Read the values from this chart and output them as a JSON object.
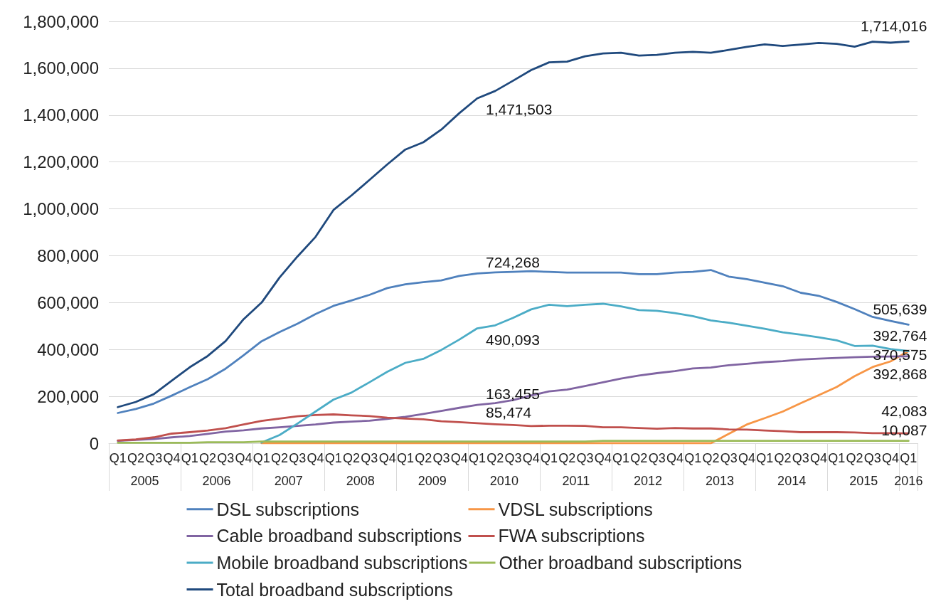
{
  "chart_data": {
    "type": "line",
    "categories": [
      "Q1",
      "Q2",
      "Q3",
      "Q4",
      "Q1",
      "Q2",
      "Q3",
      "Q4",
      "Q1",
      "Q2",
      "Q3",
      "Q4",
      "Q1",
      "Q2",
      "Q3",
      "Q4",
      "Q1",
      "Q2",
      "Q3",
      "Q4",
      "Q1",
      "Q2",
      "Q3",
      "Q4",
      "Q1",
      "Q2",
      "Q3",
      "Q4",
      "Q1",
      "Q2",
      "Q3",
      "Q4",
      "Q1",
      "Q2",
      "Q3",
      "Q4",
      "Q1",
      "Q2",
      "Q3",
      "Q4",
      "Q1",
      "Q2",
      "Q3",
      "Q4",
      "Q1"
    ],
    "series": [
      {
        "name": "DSL subscriptions",
        "color": "#4f81bd",
        "values": [
          129000,
          146000,
          169000,
          203000,
          239000,
          273000,
          318000,
          375000,
          435000,
          474000,
          510000,
          551000,
          586000,
          609000,
          633000,
          662000,
          678000,
          687000,
          695000,
          714000,
          724268,
          729000,
          731000,
          734000,
          731000,
          728000,
          728000,
          728000,
          728000,
          721000,
          721000,
          728000,
          731000,
          739000,
          711000,
          700000,
          685000,
          670000,
          642000,
          629000,
          603000,
          572000,
          539000,
          522000,
          505639
        ],
        "value_labels": [
          null,
          null,
          null,
          null,
          null,
          null,
          null,
          null,
          null,
          null,
          null,
          null,
          null,
          null,
          null,
          null,
          null,
          null,
          null,
          null,
          "724,268",
          null,
          null,
          null,
          null,
          null,
          null,
          null,
          null,
          null,
          null,
          null,
          null,
          null,
          null,
          null,
          null,
          null,
          null,
          null,
          null,
          null,
          null,
          null,
          "505,639"
        ]
      },
      {
        "name": "VDSL subscriptions",
        "color": "#f79646",
        "values": [
          null,
          null,
          null,
          null,
          null,
          null,
          null,
          null,
          0,
          0,
          0,
          0,
          0,
          0,
          0,
          0,
          0,
          0,
          0,
          0,
          0,
          0,
          0,
          0,
          0,
          0,
          0,
          0,
          0,
          0,
          0,
          0,
          0,
          0,
          40000,
          80000,
          107000,
          135000,
          171000,
          205000,
          240000,
          286000,
          325000,
          349000,
          392868
        ],
        "value_labels": [
          null,
          null,
          null,
          null,
          null,
          null,
          null,
          null,
          null,
          null,
          null,
          null,
          null,
          null,
          null,
          null,
          null,
          null,
          null,
          null,
          null,
          null,
          null,
          null,
          null,
          null,
          null,
          null,
          null,
          null,
          null,
          null,
          null,
          null,
          null,
          null,
          null,
          null,
          null,
          null,
          null,
          null,
          null,
          null,
          "392,868"
        ]
      },
      {
        "name": "Cable broadband subscriptions",
        "color": "#8064a2",
        "values": [
          10000,
          14000,
          18000,
          25000,
          31000,
          40000,
          50000,
          55000,
          63000,
          68000,
          74000,
          80000,
          88000,
          92000,
          96000,
          104000,
          113000,
          125000,
          138000,
          151000,
          163455,
          171000,
          184000,
          204000,
          221000,
          229000,
          244000,
          260000,
          276000,
          289000,
          299000,
          308000,
          319000,
          323000,
          333000,
          339000,
          346000,
          350000,
          357000,
          361000,
          364000,
          367000,
          369000,
          370000,
          370575
        ],
        "value_labels": [
          null,
          null,
          null,
          null,
          null,
          null,
          null,
          null,
          null,
          null,
          null,
          null,
          null,
          null,
          null,
          null,
          null,
          null,
          null,
          null,
          "163,455",
          null,
          null,
          null,
          null,
          null,
          null,
          null,
          null,
          null,
          null,
          null,
          null,
          null,
          null,
          null,
          null,
          null,
          null,
          null,
          null,
          null,
          null,
          null,
          "370,575"
        ]
      },
      {
        "name": "FWA subscriptions",
        "color": "#c0504d",
        "values": [
          12000,
          16000,
          25000,
          41000,
          47000,
          54000,
          64000,
          80000,
          95000,
          105000,
          115000,
          120000,
          123000,
          119000,
          116000,
          109000,
          105000,
          102000,
          94000,
          90000,
          85474,
          81000,
          78000,
          73000,
          75000,
          75000,
          74000,
          68000,
          68000,
          65000,
          62000,
          65000,
          63000,
          63000,
          59000,
          58000,
          54000,
          51000,
          47000,
          47000,
          47000,
          46000,
          43000,
          43000,
          42083
        ],
        "value_labels": [
          null,
          null,
          null,
          null,
          null,
          null,
          null,
          null,
          null,
          null,
          null,
          null,
          null,
          null,
          null,
          null,
          null,
          null,
          null,
          null,
          "85,474",
          null,
          null,
          null,
          null,
          null,
          null,
          null,
          null,
          null,
          null,
          null,
          null,
          null,
          null,
          null,
          null,
          null,
          null,
          null,
          null,
          null,
          null,
          null,
          "42,083"
        ]
      },
      {
        "name": "Mobile broadband subscriptions",
        "color": "#4bacc6",
        "values": [
          null,
          null,
          null,
          null,
          null,
          null,
          null,
          null,
          3000,
          35000,
          84000,
          135000,
          186000,
          216000,
          260000,
          305000,
          343000,
          360000,
          398000,
          442000,
          490093,
          503000,
          535000,
          571000,
          591000,
          585000,
          591000,
          595000,
          584000,
          568000,
          565000,
          555000,
          542000,
          524000,
          514000,
          501000,
          488000,
          473000,
          463000,
          452000,
          439000,
          415000,
          416000,
          402000,
          392764
        ],
        "value_labels": [
          null,
          null,
          null,
          null,
          null,
          null,
          null,
          null,
          null,
          null,
          null,
          null,
          null,
          null,
          null,
          null,
          null,
          null,
          null,
          null,
          "490,093",
          null,
          null,
          null,
          null,
          null,
          null,
          null,
          null,
          null,
          null,
          null,
          null,
          null,
          null,
          null,
          null,
          null,
          null,
          null,
          null,
          null,
          null,
          null,
          "392,764"
        ]
      },
      {
        "name": "Other broadband subscriptions",
        "color": "#9bbb59",
        "values": [
          2000,
          2000,
          2000,
          2000,
          2000,
          4000,
          4000,
          4000,
          7000,
          7000,
          7000,
          7000,
          7000,
          7000,
          7000,
          7000,
          7000,
          7000,
          7000,
          7000,
          7000,
          7000,
          7000,
          7000,
          7000,
          7000,
          7000,
          10000,
          10000,
          10000,
          10000,
          10000,
          10000,
          10000,
          10000,
          10000,
          10000,
          10000,
          10000,
          10000,
          10000,
          10000,
          10000,
          10000,
          10087
        ],
        "value_labels": [
          null,
          null,
          null,
          null,
          null,
          null,
          null,
          null,
          null,
          null,
          null,
          null,
          null,
          null,
          null,
          null,
          null,
          null,
          null,
          null,
          null,
          null,
          null,
          null,
          null,
          null,
          null,
          null,
          null,
          null,
          null,
          null,
          null,
          null,
          null,
          null,
          null,
          null,
          null,
          null,
          null,
          null,
          null,
          null,
          "10,087"
        ]
      },
      {
        "name": "Total broadband subscriptions",
        "color": "#1f497d",
        "values": [
          154000,
          176000,
          209000,
          267000,
          324000,
          372000,
          436000,
          529000,
          600000,
          707000,
          797000,
          880000,
          995000,
          1057000,
          1123000,
          1190000,
          1253000,
          1284000,
          1338000,
          1408000,
          1471503,
          1503000,
          1547000,
          1592000,
          1625000,
          1628000,
          1651000,
          1663000,
          1666000,
          1654000,
          1657000,
          1666000,
          1670000,
          1666000,
          1678000,
          1691000,
          1702000,
          1695000,
          1701000,
          1708000,
          1704000,
          1692000,
          1713000,
          1709000,
          1714016
        ],
        "value_labels": [
          null,
          null,
          null,
          null,
          null,
          null,
          null,
          null,
          null,
          null,
          null,
          null,
          null,
          null,
          null,
          null,
          null,
          null,
          null,
          null,
          "1,471,503",
          null,
          null,
          null,
          null,
          null,
          null,
          null,
          null,
          null,
          null,
          null,
          null,
          null,
          null,
          null,
          null,
          null,
          null,
          null,
          null,
          null,
          null,
          null,
          "1,714,016"
        ]
      }
    ],
    "ylim": [
      0,
      1800000
    ],
    "yticks": [
      0,
      {
        "value": 200000,
        "label": "200,000"
      },
      {
        "value": 400000,
        "label": "400,000"
      },
      {
        "value": 600000,
        "label": "600,000"
      },
      {
        "value": 800000,
        "label": "800,000"
      },
      {
        "value": 1000000,
        "label": "1,000,000"
      },
      {
        "value": 1200000,
        "label": "1,200,000"
      },
      {
        "value": 1400000,
        "label": "1,400,000"
      },
      {
        "value": 1600000,
        "label": "1,600,000"
      },
      {
        "value": 1800000,
        "label": "1,800,000"
      }
    ],
    "grid": "y",
    "legend": "bottom",
    "annotations": [
      "2005",
      "2006",
      "2007",
      "2008",
      "2009",
      "2010",
      "2011",
      "2012",
      "2013",
      "2014",
      "2015",
      "2016"
    ]
  }
}
